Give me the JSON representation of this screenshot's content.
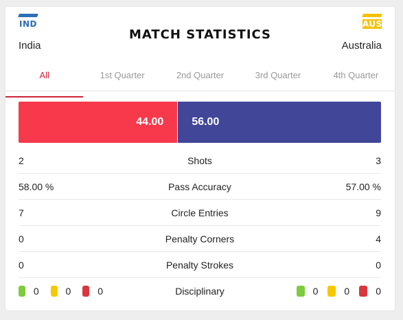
{
  "header": {
    "title": "MATCH STATISTICS",
    "home": {
      "name": "India",
      "code": "IND",
      "color": "#2f6fb7"
    },
    "away": {
      "name": "Australia",
      "code": "AUS",
      "color": "#f6c100"
    }
  },
  "tabs": [
    "All",
    "1st Quarter",
    "2nd Quarter",
    "3rd Quarter",
    "4th Quarter"
  ],
  "active_tab": "All",
  "possession": {
    "home_value": "44.00",
    "away_value": "56.00",
    "home_share": 44.0,
    "away_share": 56.0,
    "home_color": "#f7394b",
    "away_color": "#414699"
  },
  "stats": [
    {
      "label": "Shots",
      "home": "2",
      "away": "3"
    },
    {
      "label": "Pass Accuracy",
      "home": "58.00 %",
      "away": "57.00 %"
    },
    {
      "label": "Circle Entries",
      "home": "7",
      "away": "9"
    },
    {
      "label": "Penalty Corners",
      "home": "0",
      "away": "4"
    },
    {
      "label": "Penalty Strokes",
      "home": "0",
      "away": "0"
    }
  ],
  "disciplinary": {
    "label": "Disciplinary",
    "home": {
      "green": "0",
      "yellow": "0",
      "red": "0"
    },
    "away": {
      "green": "0",
      "yellow": "0",
      "red": "0"
    }
  }
}
